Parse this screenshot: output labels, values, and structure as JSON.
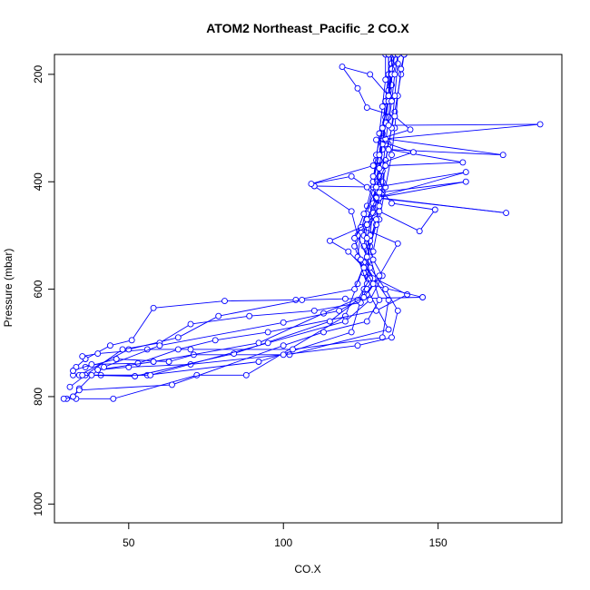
{
  "chart_data": {
    "type": "scatter",
    "title": "ATOM2 Northeast_Pacific_2 CO.X",
    "xlabel": "CO.X",
    "ylabel": "Pressure (mbar)",
    "xlim": [
      26,
      190
    ],
    "ylim": [
      1035,
      163
    ],
    "y_reversed": true,
    "x_ticks": [
      50,
      100,
      150
    ],
    "y_ticks": [
      200,
      400,
      600,
      800,
      1000
    ],
    "color": "#0000ff",
    "marker": "open-circle",
    "connected": true,
    "series": [
      {
        "points": [
          [
            30,
            804
          ],
          [
            33,
            804
          ],
          [
            45,
            804
          ],
          [
            72,
            760
          ],
          [
            88,
            760
          ],
          [
            120,
            650
          ],
          [
            124,
            590
          ],
          [
            128,
            520
          ],
          [
            130,
            470
          ],
          [
            132,
            400
          ],
          [
            134,
            330
          ],
          [
            136,
            270
          ],
          [
            138,
            200
          ],
          [
            139,
            163
          ]
        ]
      },
      {
        "points": [
          [
            32,
            760
          ],
          [
            41,
            760
          ],
          [
            56,
            760
          ],
          [
            92,
            735
          ],
          [
            122,
            680
          ],
          [
            126,
            600
          ],
          [
            129,
            530
          ],
          [
            131,
            470
          ],
          [
            133,
            410
          ],
          [
            135,
            350
          ],
          [
            136,
            300
          ],
          [
            137,
            240
          ],
          [
            138,
            190
          ],
          [
            139,
            163
          ]
        ]
      },
      {
        "points": [
          [
            33,
            745
          ],
          [
            36,
            730
          ],
          [
            44,
            705
          ],
          [
            51,
            695
          ],
          [
            58,
            635
          ],
          [
            81,
            622
          ],
          [
            104,
            620
          ],
          [
            123,
            600
          ],
          [
            127,
            540
          ],
          [
            130,
            480
          ],
          [
            132,
            420
          ],
          [
            133,
            360
          ],
          [
            135,
            300
          ],
          [
            136,
            240
          ],
          [
            137,
            180
          ],
          [
            137,
            163
          ]
        ]
      },
      {
        "points": [
          [
            35,
            725
          ],
          [
            40,
            720
          ],
          [
            56,
            712
          ],
          [
            70,
            712
          ],
          [
            103,
            712
          ],
          [
            132,
            690
          ],
          [
            134,
            620
          ],
          [
            127,
            560
          ],
          [
            128,
            510
          ],
          [
            130,
            470
          ],
          [
            131,
            420
          ],
          [
            132,
            380
          ],
          [
            133,
            330
          ],
          [
            134,
            280
          ],
          [
            135,
            220
          ],
          [
            135,
            163
          ]
        ]
      },
      {
        "points": [
          [
            36,
            745
          ],
          [
            46,
            730
          ],
          [
            63,
            735
          ],
          [
            71,
            722
          ],
          [
            102,
            722
          ],
          [
            134,
            675
          ],
          [
            127,
            600
          ],
          [
            126,
            550
          ],
          [
            128,
            500
          ],
          [
            129,
            450
          ],
          [
            130,
            410
          ],
          [
            131,
            360
          ],
          [
            132,
            310
          ],
          [
            133,
            250
          ],
          [
            134,
            200
          ],
          [
            134,
            163
          ]
        ]
      },
      {
        "points": [
          [
            32,
            752
          ],
          [
            38,
            740
          ],
          [
            53,
            738
          ],
          [
            66,
            712
          ],
          [
            78,
            695
          ],
          [
            95,
            680
          ],
          [
            130,
            640
          ],
          [
            140,
            610
          ],
          [
            126,
            570
          ],
          [
            123,
            520
          ],
          [
            128,
            470
          ],
          [
            130,
            430
          ],
          [
            131,
            390
          ],
          [
            132,
            340
          ],
          [
            133,
            290
          ],
          [
            134,
            230
          ],
          [
            134,
            163
          ]
        ]
      },
      {
        "points": [
          [
            34,
            760
          ],
          [
            50,
            712
          ],
          [
            66,
            690
          ],
          [
            79,
            650
          ],
          [
            106,
            620
          ],
          [
            120,
            618
          ],
          [
            145,
            615
          ],
          [
            127,
            590
          ],
          [
            124,
            540
          ],
          [
            125,
            495
          ],
          [
            127,
            445
          ],
          [
            129,
            400
          ],
          [
            131,
            350
          ],
          [
            132,
            300
          ],
          [
            133,
            250
          ],
          [
            134,
            200
          ],
          [
            135,
            163
          ]
        ]
      },
      {
        "points": [
          [
            31,
            782
          ],
          [
            36,
            760
          ],
          [
            48,
            712
          ],
          [
            60,
            700
          ],
          [
            70,
            665
          ],
          [
            89,
            650
          ],
          [
            110,
            640
          ],
          [
            125,
            625
          ],
          [
            130,
            580
          ],
          [
            128,
            540
          ],
          [
            126,
            500
          ],
          [
            127,
            460
          ],
          [
            129,
            410
          ],
          [
            130,
            360
          ],
          [
            131,
            310
          ],
          [
            132,
            260
          ],
          [
            133,
            210
          ],
          [
            133,
            163
          ]
        ]
      },
      {
        "points": [
          [
            29,
            804
          ],
          [
            32,
            800
          ],
          [
            34,
            785
          ],
          [
            40,
            750
          ],
          [
            50,
            745
          ],
          [
            70,
            740
          ],
          [
            100,
            722
          ],
          [
            124,
            705
          ],
          [
            135,
            690
          ],
          [
            137,
            640
          ],
          [
            133,
            600
          ],
          [
            128,
            560
          ],
          [
            126,
            520
          ],
          [
            127,
            480
          ],
          [
            129,
            440
          ],
          [
            130,
            400
          ],
          [
            131,
            360
          ],
          [
            132,
            320
          ],
          [
            133,
            280
          ],
          [
            134,
            230
          ],
          [
            135,
            180
          ],
          [
            136,
            163
          ]
        ]
      },
      {
        "points": [
          [
            32,
            800
          ],
          [
            34,
            788
          ],
          [
            64,
            778
          ],
          [
            100,
            705
          ],
          [
            113,
            680
          ],
          [
            127,
            660
          ],
          [
            131,
            620
          ],
          [
            129,
            580
          ],
          [
            125,
            545
          ],
          [
            123,
            505
          ],
          [
            126,
            460
          ],
          [
            130,
            415
          ],
          [
            131,
            375
          ],
          [
            132,
            330
          ],
          [
            133,
            290
          ],
          [
            134,
            245
          ],
          [
            135,
            200
          ],
          [
            135,
            163
          ]
        ]
      },
      {
        "points": [
          [
            35,
            760
          ],
          [
            52,
            762
          ],
          [
            84,
            720
          ],
          [
            115,
            660
          ],
          [
            124,
            620
          ],
          [
            128,
            580
          ],
          [
            127,
            540
          ],
          [
            124,
            500
          ],
          [
            122,
            455
          ],
          [
            110,
            408
          ],
          [
            131,
            410
          ],
          [
            135,
            440
          ],
          [
            149,
            452
          ],
          [
            144,
            492
          ],
          [
            131,
            455
          ],
          [
            129,
            400
          ],
          [
            130,
            350
          ],
          [
            132,
            300
          ],
          [
            134,
            240
          ],
          [
            135,
            190
          ],
          [
            136,
            163
          ]
        ]
      },
      {
        "points": [
          [
            38,
            760
          ],
          [
            57,
            760
          ],
          [
            95,
            700
          ],
          [
            120,
            660
          ],
          [
            128,
            620
          ],
          [
            132,
            575
          ],
          [
            129,
            545
          ],
          [
            127,
            505
          ],
          [
            129,
            458
          ],
          [
            131,
            420
          ],
          [
            159,
            400
          ],
          [
            130,
            430
          ],
          [
            172,
            458
          ],
          [
            131,
            430
          ],
          [
            129,
            390
          ],
          [
            131,
            350
          ],
          [
            132,
            300
          ],
          [
            134,
            250
          ],
          [
            135,
            200
          ],
          [
            136,
            163
          ]
        ]
      },
      {
        "points": [
          [
            40,
            750
          ],
          [
            58,
            735
          ],
          [
            92,
            700
          ],
          [
            113,
            645
          ],
          [
            127,
            610
          ],
          [
            131,
            575
          ],
          [
            137,
            515
          ],
          [
            125,
            485
          ],
          [
            123,
            505
          ],
          [
            127,
            470
          ],
          [
            130,
            430
          ],
          [
            159,
            382
          ],
          [
            130,
            410
          ],
          [
            133,
            370
          ],
          [
            158,
            364
          ],
          [
            134,
            340
          ],
          [
            171,
            350
          ],
          [
            133,
            320
          ],
          [
            183,
            293
          ],
          [
            134,
            295
          ],
          [
            135,
            250
          ],
          [
            136,
            200
          ],
          [
            137,
            163
          ]
        ]
      },
      {
        "points": [
          [
            42,
            745
          ],
          [
            60,
            705
          ],
          [
            100,
            662
          ],
          [
            118,
            640
          ],
          [
            126,
            615
          ],
          [
            129,
            590
          ],
          [
            126,
            560
          ],
          [
            121,
            530
          ],
          [
            115,
            510
          ],
          [
            127,
            480
          ],
          [
            131,
            445
          ],
          [
            127,
            410
          ],
          [
            122,
            390
          ],
          [
            109,
            404
          ],
          [
            129,
            370
          ],
          [
            142,
            345
          ],
          [
            130,
            322
          ],
          [
            141,
            303
          ],
          [
            136,
            278
          ],
          [
            127,
            262
          ],
          [
            124,
            226
          ],
          [
            119,
            186
          ],
          [
            128,
            200
          ],
          [
            134,
            240
          ],
          [
            134,
            163
          ]
        ]
      }
    ]
  }
}
